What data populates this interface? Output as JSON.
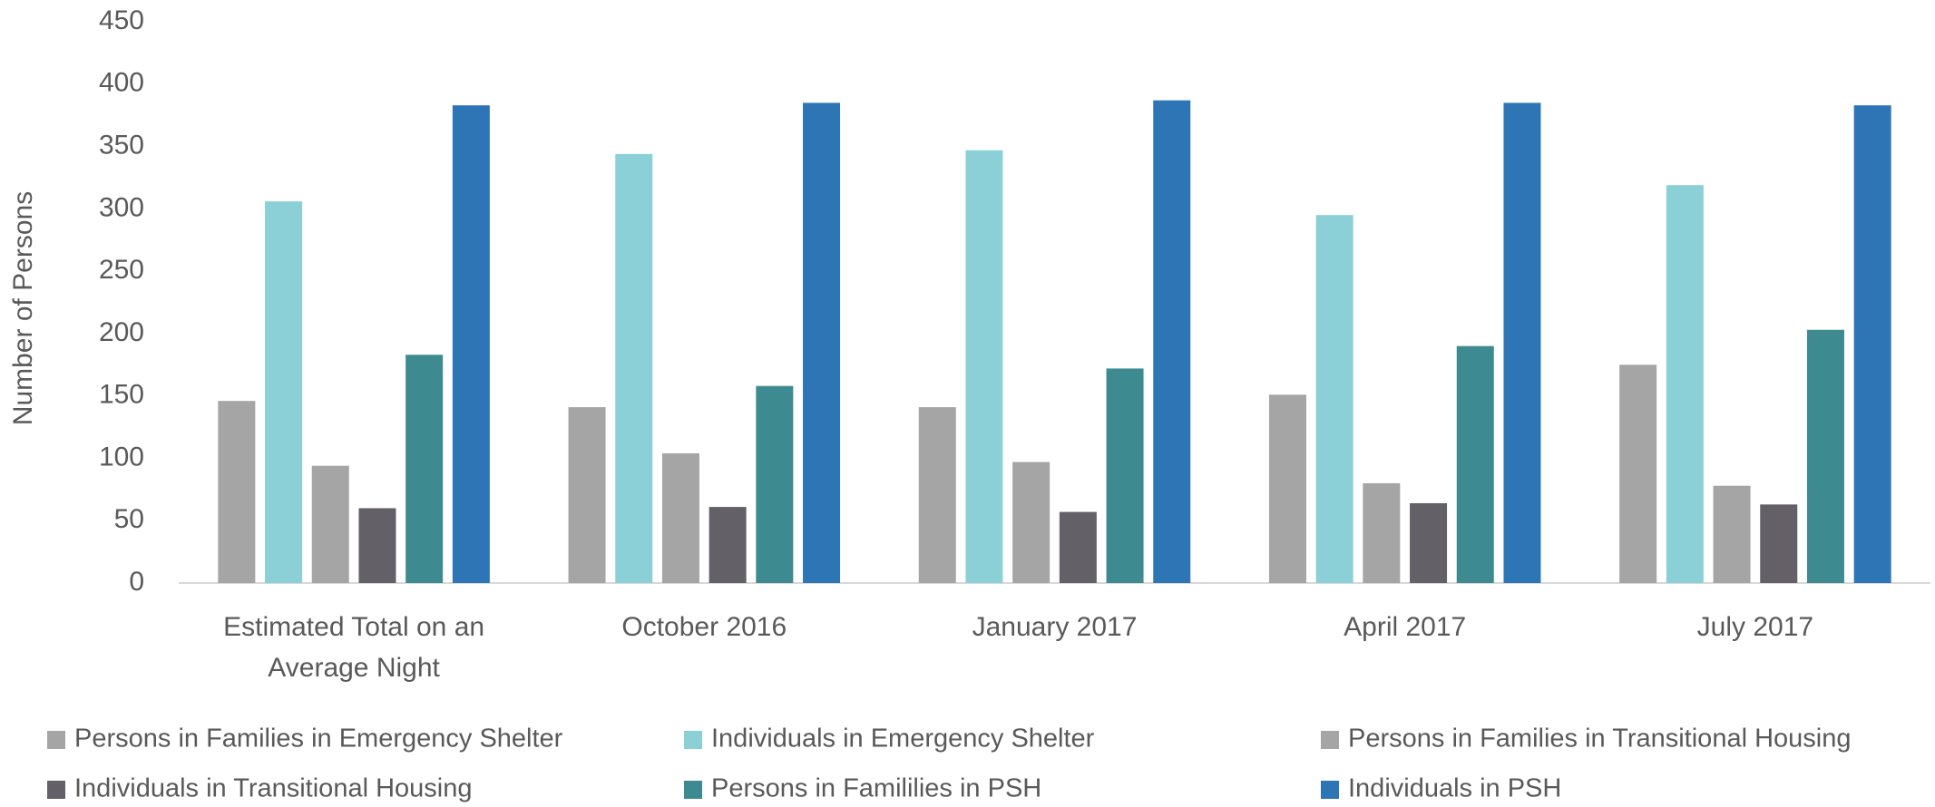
{
  "chart_data": {
    "type": "bar",
    "y_label": "Number of Persons",
    "categories": [
      "Estimated Total on an Average Night",
      "October 2016",
      "January 2017",
      "April 2017",
      "July 2017"
    ],
    "series": [
      {
        "name": "Persons in Families in Emergency Shelter",
        "color": "#a5a5a5",
        "values": [
          146,
          141,
          141,
          151,
          175
        ]
      },
      {
        "name": "Individuals in Emergency Shelter",
        "color": "#8ad0d6",
        "values": [
          306,
          344,
          347,
          295,
          319
        ]
      },
      {
        "name": "Persons in Families in Transitional Housing",
        "color": "#a5a5a5",
        "values": [
          94,
          104,
          97,
          80,
          78
        ]
      },
      {
        "name": "Individuals in Transitional Housing",
        "color": "#636068",
        "values": [
          60,
          61,
          57,
          64,
          63
        ]
      },
      {
        "name": "Persons in Famililies in PSH",
        "color": "#3e8a91",
        "values": [
          183,
          158,
          172,
          190,
          203
        ]
      },
      {
        "name": "Individuals in PSH",
        "color": "#2e75b6",
        "values": [
          383,
          385,
          387,
          385,
          383
        ]
      }
    ],
    "ylim": [
      0,
      450
    ],
    "yticks": [
      0,
      50,
      100,
      150,
      200,
      250,
      300,
      350,
      400,
      450
    ],
    "grid": false,
    "legend": "bottom"
  }
}
